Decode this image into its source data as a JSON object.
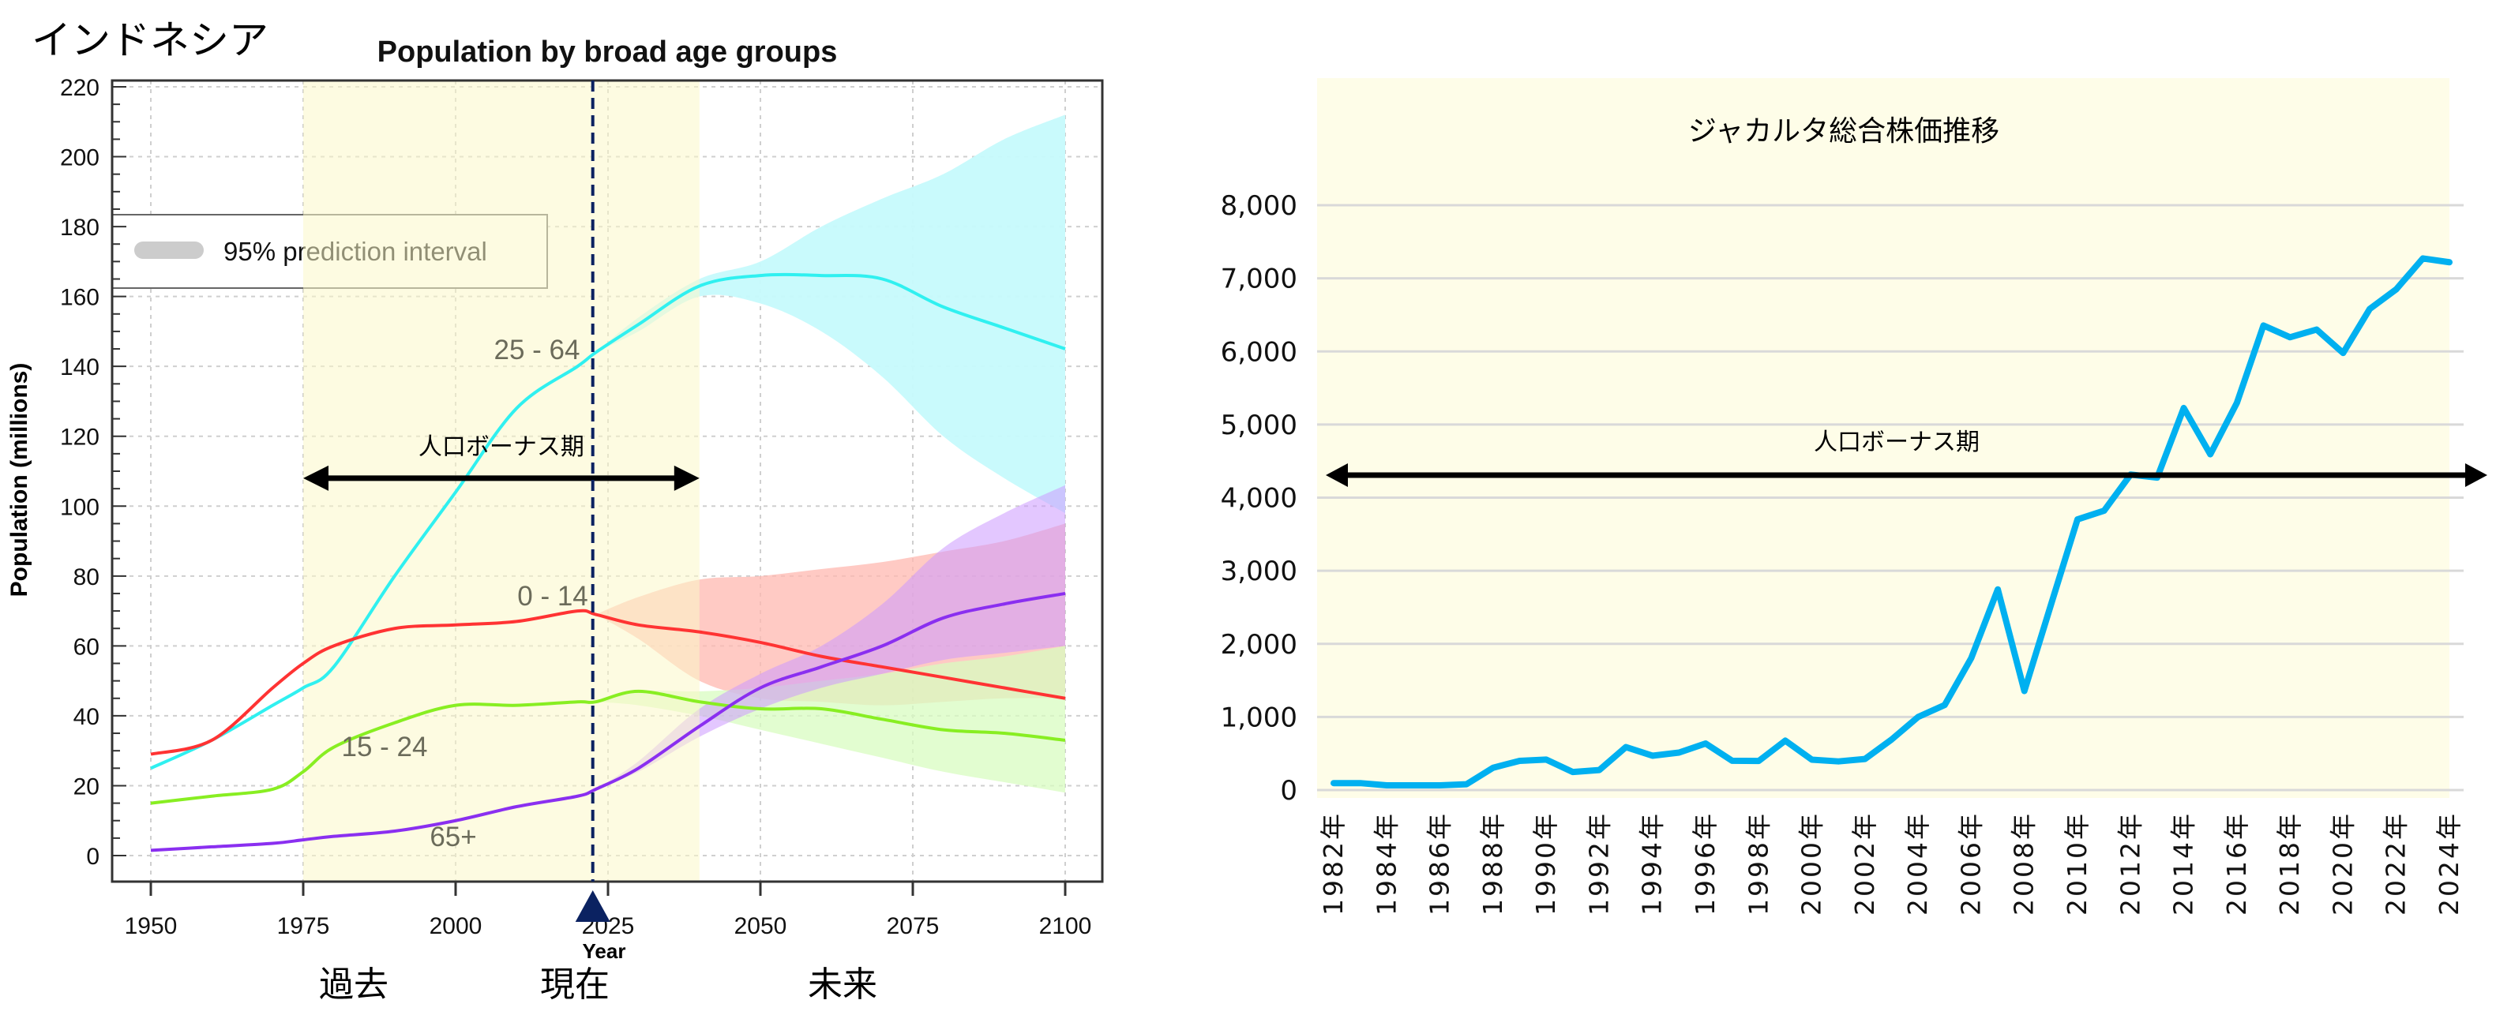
{
  "colors": {
    "bonus_band": "#fdfde4",
    "cyan": "#30f0f0",
    "cyan_band": "#c6fafc",
    "red": "#ff3333",
    "red_band": "#ffb8b0",
    "green": "#88ee22",
    "green_band": "#d8fcc0",
    "purple": "#8a2ff0",
    "purple_band": "#cc99ff",
    "present_line": "#0b2261",
    "stock_line": "#00b0f0",
    "stock_bg": "#fefde8",
    "grid": "#d9d9d9"
  },
  "chart_data": [
    {
      "type": "line",
      "country_label": "インドネシア",
      "title": "Population by broad age groups",
      "xlabel": "Year",
      "ylabel": "Population (millions)",
      "xlim": [
        1950,
        2100
      ],
      "ylim": [
        0,
        220
      ],
      "x_ticks": [
        1950,
        1975,
        2000,
        2025,
        2050,
        2075,
        2100
      ],
      "y_ticks": [
        0,
        20,
        40,
        60,
        80,
        100,
        120,
        140,
        160,
        180,
        200,
        220
      ],
      "grid": true,
      "legend": {
        "placement": "top-left",
        "label": "95% prediction interval"
      },
      "x": [
        1950,
        1960,
        1970,
        1975,
        1980,
        1990,
        2000,
        2010,
        2020,
        2023,
        2030,
        2040,
        2050,
        2060,
        2070,
        2080,
        2090,
        2100
      ],
      "series": [
        {
          "name": "25 - 64",
          "color_key": "cyan",
          "values": [
            25,
            33,
            43,
            48,
            54,
            80,
            104,
            128,
            140,
            144,
            152,
            163,
            166,
            166,
            165,
            157,
            151,
            145
          ]
        },
        {
          "name": "0 - 14",
          "color_key": "red",
          "values": [
            29,
            33,
            48,
            55,
            60,
            65,
            66,
            67,
            70,
            69,
            66,
            64,
            61,
            57,
            54,
            51,
            48,
            45
          ]
        },
        {
          "name": "15 - 24",
          "color_key": "green",
          "values": [
            15,
            17,
            19,
            24,
            31,
            38,
            43,
            43,
            44,
            44,
            47,
            44,
            42,
            42,
            39,
            36,
            35,
            33
          ]
        },
        {
          "name": "65+",
          "color_key": "purple",
          "values": [
            1.5,
            2.5,
            3.5,
            4.5,
            5.5,
            7,
            10,
            14,
            17,
            19,
            25,
            37,
            48,
            54,
            60,
            68,
            72,
            75
          ]
        }
      ],
      "prediction_intervals": {
        "x": [
          2023,
          2030,
          2040,
          2050,
          2060,
          2070,
          2080,
          2090,
          2100
        ],
        "25 - 64": {
          "lower": [
            144,
            150,
            160,
            158,
            150,
            137,
            120,
            108,
            98
          ],
          "upper": [
            144,
            154,
            165,
            170,
            180,
            188,
            195,
            205,
            212
          ]
        },
        "0 - 14": {
          "lower": [
            69,
            62,
            50,
            45,
            44,
            43,
            44,
            45,
            45
          ],
          "upper": [
            69,
            74,
            79,
            80,
            82,
            84,
            87,
            90,
            95
          ]
        },
        "15 - 24": {
          "lower": [
            44,
            43,
            40,
            36,
            32,
            28,
            24,
            21,
            18
          ],
          "upper": [
            44,
            47,
            47,
            48,
            50,
            52,
            55,
            57,
            60
          ]
        },
        "65+": {
          "lower": [
            19,
            24,
            34,
            42,
            48,
            52,
            56,
            58,
            60
          ],
          "upper": [
            19,
            27,
            42,
            52,
            60,
            72,
            88,
            98,
            106
          ]
        }
      },
      "annotations": {
        "bonus_period": {
          "label": "人口ボーナス期",
          "from": 1975,
          "to": 2040,
          "y": 108
        },
        "present_year": 2022.5,
        "era_labels": [
          "過去",
          "現在",
          "未来"
        ]
      }
    },
    {
      "type": "line",
      "title": "ジャカルタ総合株価推移",
      "ylim": [
        0,
        8000
      ],
      "y_ticks": [
        0,
        1000,
        2000,
        3000,
        4000,
        5000,
        6000,
        7000,
        8000
      ],
      "y_tick_labels": [
        "0",
        "1,000",
        "2,000",
        "3,000",
        "4,000",
        "5,000",
        "6,000",
        "7,000",
        "8,000"
      ],
      "x_tick_labels": [
        "1982年",
        "1984年",
        "1986年",
        "1988年",
        "1990年",
        "1992年",
        "1994年",
        "1996年",
        "1998年",
        "2000年",
        "2002年",
        "2004年",
        "2006年",
        "2008年",
        "2010年",
        "2012年",
        "2014年",
        "2016年",
        "2018年",
        "2020年",
        "2022年",
        "2024年"
      ],
      "grid": true,
      "x": [
        1982,
        1983,
        1984,
        1985,
        1986,
        1987,
        1988,
        1989,
        1990,
        1991,
        1992,
        1993,
        1994,
        1995,
        1996,
        1997,
        1998,
        1999,
        2000,
        2001,
        2002,
        2003,
        2004,
        2005,
        2006,
        2007,
        2008,
        2009,
        2010,
        2011,
        2012,
        2013,
        2014,
        2015,
        2016,
        2017,
        2018,
        2019,
        2020,
        2021,
        2022,
        2023,
        2024
      ],
      "values": [
        95,
        95,
        65,
        65,
        65,
        80,
        305,
        400,
        417,
        247,
        274,
        588,
        470,
        513,
        637,
        401,
        398,
        676,
        416,
        392,
        425,
        691,
        1000,
        1163,
        1805,
        2745,
        1355,
        2534,
        3703,
        3821,
        4316,
        4274,
        5226,
        4593,
        5296,
        6355,
        6194,
        6299,
        5979,
        6581,
        6850,
        7272,
        7220
      ],
      "annotations": {
        "bonus_period": {
          "label": "人口ボーナス期",
          "y": 4320
        }
      }
    }
  ]
}
